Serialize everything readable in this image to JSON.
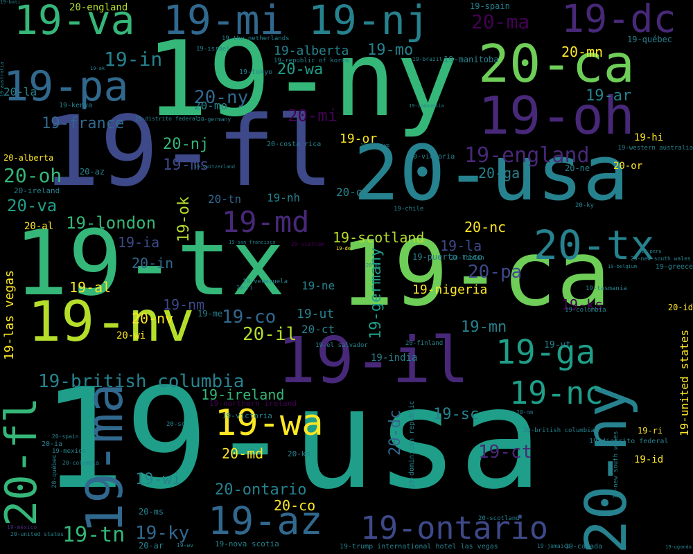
{
  "palette": {
    "background": "#000000",
    "dark_purple": "#440154",
    "purple": "#482878",
    "indigo": "#3e4989",
    "blue": "#31688e",
    "teal": "#26828e",
    "cyan_green": "#1f9e89",
    "green": "#35b779",
    "light_green": "#6ece58",
    "lime": "#b5de2b",
    "yellow": "#fde725"
  },
  "words": [
    {
      "t": "19-usa",
      "fs": 200,
      "c": "#1f9e89"
    },
    {
      "t": "19-ny",
      "fs": 150,
      "c": "#35b779"
    },
    {
      "t": "19-fl",
      "fs": 140,
      "c": "#3e4989"
    },
    {
      "t": "19-tx",
      "fs": 130,
      "c": "#35b779"
    },
    {
      "t": "19-ca",
      "fs": 130,
      "c": "#6ece58"
    },
    {
      "t": "20-usa",
      "fs": 110,
      "c": "#26828e"
    },
    {
      "t": "19-il",
      "fs": 92,
      "c": "#482878"
    },
    {
      "t": "20-ny",
      "fs": 82,
      "c": "#26828e"
    },
    {
      "t": "19-nv",
      "fs": 80,
      "c": "#b5de2b"
    },
    {
      "t": "20-ca",
      "fs": 75,
      "c": "#6ece58"
    },
    {
      "t": "19-oh",
      "fs": 75,
      "c": "#482878"
    },
    {
      "t": "19-ma",
      "fs": 72,
      "c": "#31688e"
    },
    {
      "t": "20-fl",
      "fs": 62,
      "c": "#35b779"
    },
    {
      "t": "19-pa",
      "fs": 60,
      "c": "#31688e"
    },
    {
      "t": "19-nj",
      "fs": 58,
      "c": "#26828e"
    },
    {
      "t": "19-va",
      "fs": 58,
      "c": "#35b779"
    },
    {
      "t": "19-mi",
      "fs": 58,
      "c": "#31688e"
    },
    {
      "t": "20-tx",
      "fs": 58,
      "c": "#26828e"
    },
    {
      "t": "19-dc",
      "fs": 55,
      "c": "#482878"
    },
    {
      "t": "19-az",
      "fs": 55,
      "c": "#31688e"
    },
    {
      "t": "19-wa",
      "fs": 52,
      "c": "#fde725"
    },
    {
      "t": "19-ga",
      "fs": 48,
      "c": "#1f9e89"
    },
    {
      "t": "19-nc",
      "fs": 45,
      "c": "#1f9e89"
    },
    {
      "t": "19-ontario",
      "fs": 45,
      "c": "#3e4989"
    },
    {
      "t": "19-md",
      "fs": 42,
      "c": "#482878"
    },
    {
      "t": "19-england",
      "fs": 30,
      "c": "#482878"
    },
    {
      "t": "20-ma",
      "fs": 28,
      "c": "#440154"
    },
    {
      "t": "19-in",
      "fs": 28,
      "c": "#26828e"
    },
    {
      "t": "20-ny",
      "fs": 26,
      "c": "#31688e"
    },
    {
      "t": "19-ar",
      "fs": 22,
      "c": "#26828e"
    },
    {
      "t": "19-tn",
      "fs": 30,
      "c": "#35b779"
    },
    {
      "t": "19-ky",
      "fs": 26,
      "c": "#31688e"
    },
    {
      "t": "19-ct",
      "fs": 26,
      "c": "#482878"
    },
    {
      "t": "19-sc",
      "fs": 22,
      "c": "#26828e"
    },
    {
      "t": "19-wi",
      "fs": 22,
      "c": "#26828e"
    },
    {
      "t": "19-mo",
      "fs": 22,
      "c": "#26828e"
    },
    {
      "t": "20-mn",
      "fs": 20,
      "c": "#fde725"
    },
    {
      "t": "20-wa",
      "fs": 22,
      "c": "#1f9e89"
    },
    {
      "t": "20-mi",
      "fs": 24,
      "c": "#440154"
    },
    {
      "t": "19-france",
      "fs": 22,
      "c": "#31688e"
    },
    {
      "t": "20-nj",
      "fs": 22,
      "c": "#35b779"
    },
    {
      "t": "19-ms",
      "fs": 22,
      "c": "#3e4989"
    },
    {
      "t": "20-oh",
      "fs": 28,
      "c": "#35b779"
    },
    {
      "t": "20-va",
      "fs": 24,
      "c": "#1f9e89"
    },
    {
      "t": "19-london",
      "fs": 24,
      "c": "#35b779"
    },
    {
      "t": "19-ok",
      "fs": 22,
      "c": "#b5de2b"
    },
    {
      "t": "19-scotland",
      "fs": 20,
      "c": "#b5de2b"
    },
    {
      "t": "20-nc",
      "fs": 20,
      "c": "#fde725"
    },
    {
      "t": "19-la",
      "fs": 20,
      "c": "#3e4989"
    },
    {
      "t": "20-pa",
      "fs": 26,
      "c": "#3e4989"
    },
    {
      "t": "19-germany",
      "fs": 22,
      "c": "#1f9e89"
    },
    {
      "t": "19-nigeria",
      "fs": 18,
      "c": "#fde725"
    },
    {
      "t": "19-ks",
      "fs": 20,
      "c": "#440154"
    },
    {
      "t": "19-mn",
      "fs": 22,
      "c": "#26828e"
    },
    {
      "t": "20-il",
      "fs": 26,
      "c": "#b5de2b"
    },
    {
      "t": "19-co",
      "fs": 26,
      "c": "#31688e"
    },
    {
      "t": "20-nv",
      "fs": 20,
      "c": "#fde725"
    },
    {
      "t": "19-nm",
      "fs": 20,
      "c": "#3e4989"
    },
    {
      "t": "19-al",
      "fs": 20,
      "c": "#fde725"
    },
    {
      "t": "20-in",
      "fs": 20,
      "c": "#31688e"
    },
    {
      "t": "19-ia",
      "fs": 20,
      "c": "#3e4989"
    },
    {
      "t": "19-british columbia",
      "fs": 26,
      "c": "#26828e"
    },
    {
      "t": "19-ireland",
      "fs": 20,
      "c": "#35b779"
    },
    {
      "t": "20-md",
      "fs": 20,
      "c": "#fde725"
    },
    {
      "t": "20-ontario",
      "fs": 22,
      "c": "#26828e"
    },
    {
      "t": "20-co",
      "fs": 20,
      "c": "#fde725"
    },
    {
      "t": "20-dc",
      "fs": 22,
      "c": "#31688e"
    },
    {
      "t": "19-las vegas",
      "fs": 18,
      "c": "#fde725"
    },
    {
      "t": "19-united states",
      "fs": 16,
      "c": "#fde725"
    },
    {
      "t": "19-alberta",
      "fs": 18,
      "c": "#26828e"
    },
    {
      "t": "19-nh",
      "fs": 16,
      "c": "#26828e"
    },
    {
      "t": "20-ok",
      "fs": 16,
      "c": "#26828e"
    },
    {
      "t": "20-tn",
      "fs": 16,
      "c": "#31688e"
    },
    {
      "t": "19-or",
      "fs": 18,
      "c": "#fde725"
    },
    {
      "t": "20-ga",
      "fs": 20,
      "c": "#26828e"
    },
    {
      "t": "20-mo",
      "fs": 16,
      "c": "#26828e"
    },
    {
      "t": "20-la",
      "fs": 16,
      "c": "#26828e"
    },
    {
      "t": "19-ne",
      "fs": 16,
      "c": "#26828e"
    },
    {
      "t": "19-ut",
      "fs": 18,
      "c": "#26828e"
    },
    {
      "t": "20-ct",
      "fs": 16,
      "c": "#26828e"
    },
    {
      "t": "19-me",
      "fs": 12,
      "c": "#26828e"
    },
    {
      "t": "20-wi",
      "fs": 14,
      "c": "#fde725"
    },
    {
      "t": "19-india",
      "fs": 14,
      "c": "#26828e"
    },
    {
      "t": "19-vt",
      "fs": 13,
      "c": "#26828e"
    },
    {
      "t": "19-hi",
      "fs": 14,
      "c": "#fde725"
    },
    {
      "t": "20-or",
      "fs": 14,
      "c": "#fde725"
    },
    {
      "t": "20-ne",
      "fs": 12,
      "c": "#26828e"
    },
    {
      "t": "19-id",
      "fs": 14,
      "c": "#fde725"
    },
    {
      "t": "19-ri",
      "fs": 12,
      "c": "#fde725"
    },
    {
      "t": "20-id",
      "fs": 12,
      "c": "#fde725"
    },
    {
      "t": "20-england",
      "fs": 14,
      "c": "#b5de2b"
    },
    {
      "t": "19-spain",
      "fs": 12,
      "c": "#26828e"
    },
    {
      "t": "19-québec",
      "fs": 12,
      "c": "#26828e"
    },
    {
      "t": "19-manitoba",
      "fs": 12,
      "c": "#26828e"
    },
    {
      "t": "19-kenya",
      "fs": 10,
      "c": "#26828e"
    },
    {
      "t": "20-alberta",
      "fs": 12,
      "c": "#fde725"
    },
    {
      "t": "20-az",
      "fs": 12,
      "c": "#26828e"
    },
    {
      "t": "20-ireland",
      "fs": 11,
      "c": "#26828e"
    },
    {
      "t": "20-al",
      "fs": 14,
      "c": "#fde725"
    },
    {
      "t": "20-costa rica",
      "fs": 10,
      "c": "#26828e"
    },
    {
      "t": "20-victoria",
      "fs": 10,
      "c": "#26828e"
    },
    {
      "t": "19-chile",
      "fs": 9,
      "c": "#26828e"
    },
    {
      "t": "19-puerto rico",
      "fs": 12,
      "c": "#26828e"
    },
    {
      "t": "19-israel",
      "fs": 9,
      "c": "#26828e"
    },
    {
      "t": "19-the netherlands",
      "fs": 9,
      "c": "#26828e"
    },
    {
      "t": "19-republic of korea",
      "fs": 9,
      "c": "#26828e"
    },
    {
      "t": "19-brazil",
      "fs": 8,
      "c": "#26828e"
    },
    {
      "t": "19-tokyo",
      "fs": 10,
      "c": "#26828e"
    },
    {
      "t": "20-germany",
      "fs": 8,
      "c": "#26828e"
    },
    {
      "t": "19-greece",
      "fs": 10,
      "c": "#26828e"
    },
    {
      "t": "19-western australia",
      "fs": 9,
      "c": "#26828e"
    },
    {
      "t": "19-tasmania",
      "fs": 9,
      "c": "#26828e"
    },
    {
      "t": "19-colombia",
      "fs": 9,
      "c": "#26828e"
    },
    {
      "t": "20-ky",
      "fs": 9,
      "c": "#26828e"
    },
    {
      "t": "20-london",
      "fs": 9,
      "c": "#26828e"
    },
    {
      "t": "19-venezuela",
      "fs": 9,
      "c": "#26828e"
    },
    {
      "t": "19-el salvador",
      "fs": 9,
      "c": "#26828e"
    },
    {
      "t": "20-finland",
      "fs": 9,
      "c": "#26828e"
    },
    {
      "t": "20-sc",
      "fs": 9,
      "c": "#26828e"
    },
    {
      "t": "19-northern ireland",
      "fs": 11,
      "c": "#440154"
    },
    {
      "t": "19-victoria",
      "fs": 11,
      "c": "#26828e"
    },
    {
      "t": "19-dominican republic",
      "fs": 10,
      "c": "#26828e"
    },
    {
      "t": "20-ms",
      "fs": 12,
      "c": "#26828e"
    },
    {
      "t": "20-ar",
      "fs": 12,
      "c": "#26828e"
    },
    {
      "t": "19-nova scotia",
      "fs": 11,
      "c": "#26828e"
    },
    {
      "t": "19-trump international hotel las vegas",
      "fs": 10,
      "c": "#26828e"
    },
    {
      "t": "19-canada",
      "fs": 10,
      "c": "#26828e"
    },
    {
      "t": "19-distrito federal",
      "fs": 10,
      "c": "#26828e"
    },
    {
      "t": "19-new south wales",
      "fs": 9,
      "c": "#26828e"
    },
    {
      "t": "20-british columbia",
      "fs": 9,
      "c": "#26828e"
    },
    {
      "t": "20-scotland",
      "fs": 9,
      "c": "#26828e"
    },
    {
      "t": "20-spain",
      "fs": 8,
      "c": "#26828e"
    },
    {
      "t": "20-ia",
      "fs": 10,
      "c": "#26828e"
    },
    {
      "t": "19-mexico",
      "fs": 9,
      "c": "#26828e"
    },
    {
      "t": "20-colombia",
      "fs": 8,
      "c": "#26828e"
    },
    {
      "t": "20-québec",
      "fs": 9,
      "c": "#26828e"
    },
    {
      "t": "19-méxico",
      "fs": 8,
      "c": "#482878"
    },
    {
      "t": "20-united states",
      "fs": 8,
      "c": "#26828e"
    },
    {
      "t": "20-ks",
      "fs": 11,
      "c": "#26828e"
    },
    {
      "t": "20-nm",
      "fs": 8,
      "c": "#26828e"
    },
    {
      "t": "19-wv",
      "fs": 8,
      "c": "#26828e"
    },
    {
      "t": "20-vietnam",
      "fs": 8,
      "c": "#440154"
    },
    {
      "t": "19-san francisco",
      "fs": 7,
      "c": "#26828e"
    },
    {
      "t": "19-jamaica",
      "fs": 8,
      "c": "#26828e"
    },
    {
      "t": "20-ri",
      "fs": 8,
      "c": "#26828e"
    },
    {
      "t": "19-indonesia",
      "fs": 7,
      "c": "#26828e"
    },
    {
      "t": "20-new south wales",
      "fs": 8,
      "c": "#26828e"
    },
    {
      "t": "19-peru",
      "fs": 7,
      "c": "#26828e"
    },
    {
      "t": "19-australia",
      "fs": 7,
      "c": "#26828e"
    },
    {
      "t": "19-distrito federal",
      "fs": 8,
      "c": "#26828e"
    },
    {
      "t": "19-de",
      "fs": 7,
      "c": "#fde725"
    },
    {
      "t": "19-türkiye",
      "fs": 7,
      "c": "#26828e"
    },
    {
      "t": "19-switzerland",
      "fs": 7,
      "c": "#26828e"
    },
    {
      "t": "20-de",
      "fs": 7,
      "c": "#26828e"
    },
    {
      "t": "19-belgium",
      "fs": 7,
      "c": "#26828e"
    },
    {
      "t": "19-uganda",
      "fs": 7,
      "c": "#26828e"
    },
    {
      "t": "19-ak",
      "fs": 7,
      "c": "#26828e"
    },
    {
      "t": "19-bali",
      "fs": 7,
      "c": "#26828e"
    }
  ]
}
